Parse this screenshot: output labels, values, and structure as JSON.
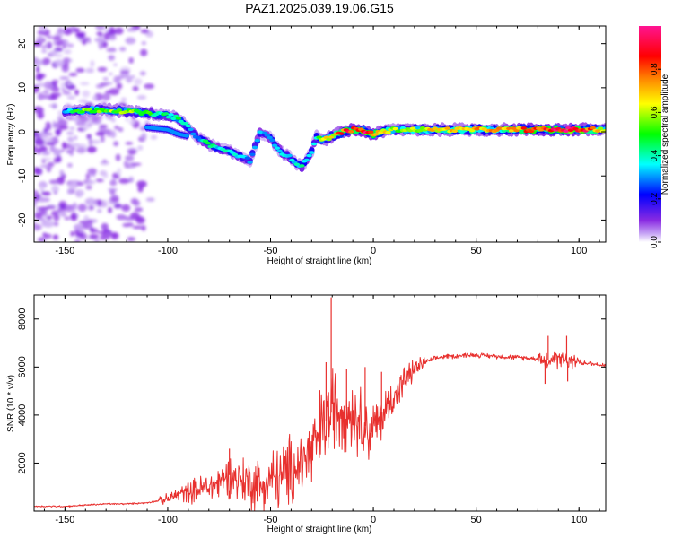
{
  "title": "PAZ1.2025.039.19.06.G15",
  "chart_data": [
    {
      "type": "heatmap",
      "name": "spectrogram",
      "xlabel": "Height of straight line (km)",
      "ylabel": "Frequency (Hz)",
      "xlim": [
        -165,
        113
      ],
      "ylim": [
        -25,
        24
      ],
      "xticks": [
        "-150",
        "-100",
        "-50",
        "0",
        "50",
        "100"
      ],
      "xtick_values": [
        -150,
        -100,
        -50,
        0,
        50,
        100
      ],
      "yticks": [
        "20",
        "10",
        "0",
        "-10",
        "-20"
      ],
      "ytick_values": [
        20,
        10,
        0,
        -10,
        -20
      ],
      "colorbar": {
        "label": "Normalized spectral amplitude",
        "range": [
          0,
          1
        ],
        "ticks": [
          "0.0",
          "0.2",
          "0.4",
          "0.6",
          "0.8"
        ],
        "tick_values": [
          0.0,
          0.2,
          0.4,
          0.6,
          0.8
        ],
        "colormap": [
          "#ffffff",
          "#8a2be2",
          "#0000ff",
          "#00ffff",
          "#00ff00",
          "#ffff00",
          "#ff8000",
          "#ff0000",
          "#ff1493"
        ]
      },
      "ridge": {
        "description": "main spectral ridge (frequency vs height)",
        "x": [
          -150,
          -140,
          -130,
          -120,
          -110,
          -100,
          -95,
          -90,
          -85,
          -80,
          -75,
          -70,
          -65,
          -60,
          -55,
          -50,
          -45,
          -40,
          -35,
          -30,
          -28,
          -25,
          -20,
          -15,
          -10,
          -5,
          0,
          10,
          20,
          40,
          60,
          80,
          100,
          113
        ],
        "y": [
          4.5,
          4.8,
          5.0,
          4.6,
          4.2,
          3.8,
          3.0,
          1.0,
          -1.5,
          -2.8,
          -3.8,
          -4.5,
          -5.5,
          -6.5,
          0.0,
          -1.5,
          -4.5,
          -6.0,
          -8.0,
          -4.5,
          -1.0,
          -2.0,
          -1.0,
          0.0,
          0.5,
          0.3,
          -0.5,
          0.5,
          0.5,
          0.5,
          0.5,
          0.5,
          0.5,
          0.5
        ],
        "amplitude": [
          0.35,
          0.55,
          0.55,
          0.55,
          0.5,
          0.4,
          0.45,
          0.35,
          0.3,
          0.45,
          0.35,
          0.4,
          0.35,
          0.3,
          0.3,
          0.3,
          0.35,
          0.35,
          0.4,
          0.35,
          0.3,
          0.6,
          0.65,
          0.8,
          0.85,
          0.9,
          0.85,
          0.55,
          0.6,
          0.7,
          0.7,
          0.85,
          0.95,
          0.6
        ]
      },
      "secondary_ridge": {
        "x": [
          -110,
          -100,
          -95,
          -90
        ],
        "y": [
          1.0,
          0.5,
          -0.5,
          -1.0
        ]
      }
    },
    {
      "type": "line",
      "name": "snr",
      "xlabel": "Height of straight line (km)",
      "ylabel": "SNR (10 * v/v)",
      "xlim": [
        -165,
        113
      ],
      "ylim": [
        0,
        9000
      ],
      "xticks": [
        "-150",
        "-100",
        "-50",
        "0",
        "50",
        "100"
      ],
      "xtick_values": [
        -150,
        -100,
        -50,
        0,
        50,
        100
      ],
      "yticks": [
        "2000",
        "4000",
        "6000",
        "8000"
      ],
      "ytick_values": [
        2000,
        4000,
        6000,
        8000
      ],
      "color": "#e8302e",
      "series": [
        {
          "name": "SNR",
          "x": [
            -165,
            -150,
            -140,
            -130,
            -120,
            -110,
            -100,
            -95,
            -90,
            -85,
            -80,
            -75,
            -70,
            -65,
            -60,
            -55,
            -50,
            -45,
            -40,
            -35,
            -30,
            -27,
            -24,
            -21,
            -19,
            -16,
            -13,
            -10,
            -6,
            -2,
            2,
            6,
            10,
            15,
            20,
            25,
            30,
            35,
            40,
            45,
            50,
            60,
            70,
            80,
            85,
            90,
            95,
            100,
            105,
            110,
            113
          ],
          "y": [
            200,
            200,
            250,
            300,
            300,
            350,
            500,
            700,
            800,
            900,
            1000,
            1200,
            1500,
            1300,
            1200,
            1100,
            1300,
            1400,
            1700,
            2000,
            2400,
            3000,
            3600,
            4000,
            4400,
            4200,
            4300,
            4000,
            3800,
            3300,
            3600,
            4200,
            4800,
            5400,
            5900,
            6200,
            6350,
            6450,
            6450,
            6500,
            6500,
            6450,
            6400,
            6350,
            6300,
            6300,
            6200,
            6200,
            6150,
            6100,
            6100
          ]
        }
      ],
      "spikes": [
        {
          "x": -20.5,
          "y": 8900
        },
        {
          "x": -23,
          "y": 6200
        },
        {
          "x": -70,
          "y": 2600
        },
        {
          "x": -13,
          "y": 5900
        },
        {
          "x": -4,
          "y": 6000
        },
        {
          "x": 4,
          "y": 5800
        },
        {
          "x": 85,
          "y": 7300
        },
        {
          "x": 83.5,
          "y": 5300
        },
        {
          "x": 94,
          "y": 7300
        },
        {
          "x": 94.5,
          "y": 5400
        }
      ]
    }
  ]
}
